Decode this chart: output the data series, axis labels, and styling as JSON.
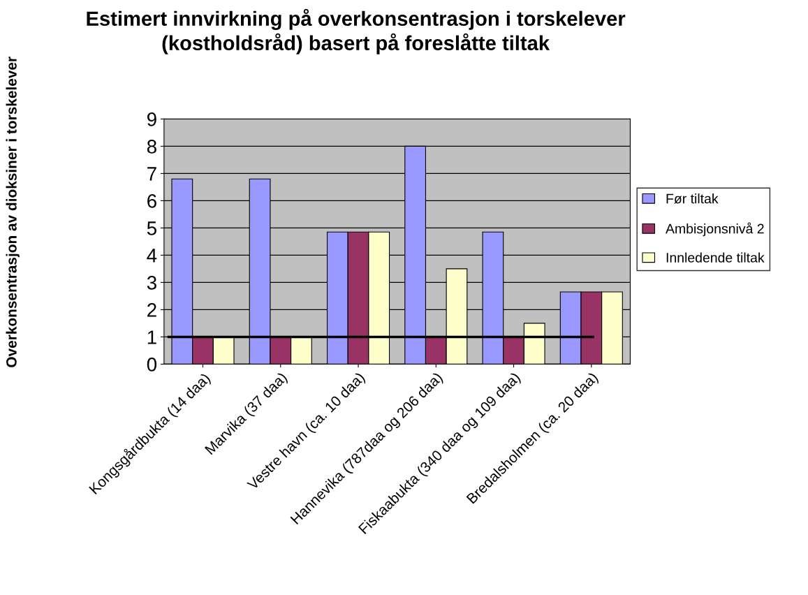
{
  "chart_data": {
    "type": "bar",
    "title": "Estimert innvirkning på overkonsentrasjon i torskelever\n(kostholdsråd) basert på foreslåtte tiltak",
    "ylabel": "Overkonsentrasjon av dioksiner i torskelever",
    "categories": [
      "Kongsgårdbukta (14 daa)",
      "Marvika (37 daa)",
      "Vestre havn (ca. 10 daa)",
      "Hannevika (787daa og 206 daa)",
      "Fiskaabukta (340 daa og 109 daa)",
      "Bredalsholmen (ca. 20 daa)"
    ],
    "series": [
      {
        "name": "Før tiltak",
        "color": "#9999ff",
        "values": [
          6.8,
          6.8,
          4.85,
          8,
          4.85,
          2.65
        ]
      },
      {
        "name": "Ambisjonsnivå 2",
        "color": "#993366",
        "values": [
          1,
          1,
          4.85,
          1,
          1,
          2.65
        ]
      },
      {
        "name": "Innledende tiltak",
        "color": "#ffffcc",
        "values": [
          1,
          1,
          4.85,
          3.5,
          1.5,
          2.65
        ]
      }
    ],
    "ylim": [
      0,
      9
    ],
    "yticks": [
      0,
      1,
      2,
      3,
      4,
      5,
      6,
      7,
      8,
      9
    ],
    "grid": "y",
    "legend": "right",
    "ref_lines": [
      {
        "axis": "y",
        "value": 1,
        "color": "#000000"
      }
    ]
  }
}
